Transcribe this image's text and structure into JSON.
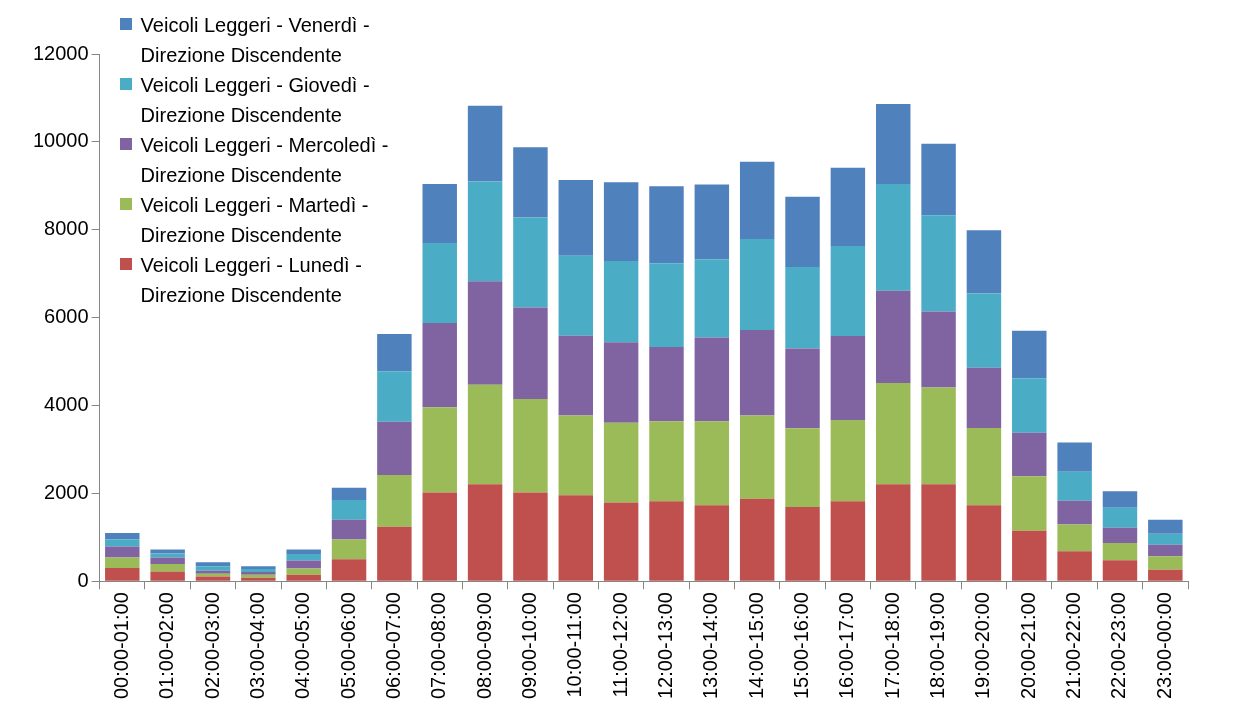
{
  "chart_data": {
    "type": "bar",
    "stacked": true,
    "legend": "top left",
    "categories": [
      "00:00-01:00",
      "01:00-02:00",
      "02:00-03:00",
      "03:00-04:00",
      "04:00-05:00",
      "05:00-06:00",
      "06:00-07:00",
      "07:00-08:00",
      "08:00-09:00",
      "09:00-10:00",
      "10:00-11:00",
      "11:00-12:00",
      "12:00-13:00",
      "13:00-14:00",
      "14:00-15:00",
      "15:00-16:00",
      "16:00-17:00",
      "17:00-18:00",
      "18:00-19:00",
      "19:00-20:00",
      "20:00-21:00",
      "21:00-22:00",
      "22:00-23:00",
      "23:00-00:00"
    ],
    "ylim": [
      0,
      12000
    ],
    "yticks": [
      0,
      2000,
      4000,
      6000,
      8000,
      10000,
      12000
    ],
    "series": [
      {
        "name": "Veicoli Leggeri - Lunedì - Direzione Discendente",
        "color": "#c0504d",
        "values": [
          300,
          220,
          110,
          80,
          150,
          500,
          1240,
          2020,
          2210,
          2020,
          1960,
          1790,
          1820,
          1730,
          1880,
          1690,
          1820,
          2210,
          2210,
          1730,
          1150,
          680,
          480,
          260
        ]
      },
      {
        "name": "Veicoli Leggeri - Martedì - Direzione Discendente",
        "color": "#9bbb59",
        "values": [
          240,
          170,
          60,
          70,
          140,
          450,
          1180,
          1940,
          2260,
          2130,
          1810,
          1820,
          1820,
          1910,
          1890,
          1790,
          1850,
          2300,
          2200,
          1760,
          1240,
          610,
          390,
          310
        ]
      },
      {
        "name": "Veicoli Leggeri - Mercoledì - Direzione Discendente",
        "color": "#8064a2",
        "values": [
          250,
          150,
          70,
          60,
          180,
          450,
          1210,
          1920,
          2360,
          2080,
          1820,
          1830,
          1690,
          1910,
          1950,
          1820,
          1910,
          2100,
          1730,
          1370,
          990,
          540,
          350,
          260
        ]
      },
      {
        "name": "Veicoli Leggeri - Giovedì - Direzione Discendente",
        "color": "#4bacc6",
        "values": [
          160,
          90,
          100,
          70,
          150,
          450,
          1150,
          1820,
          2270,
          2050,
          1820,
          1850,
          1910,
          1780,
          2070,
          1850,
          2050,
          2430,
          2190,
          1690,
          1240,
          660,
          450,
          250
        ]
      },
      {
        "name": "Veicoli Leggeri - Venerdì - Direzione Discendente",
        "color": "#4f81bd",
        "values": [
          150,
          90,
          90,
          60,
          100,
          280,
          850,
          1340,
          1720,
          1600,
          1720,
          1790,
          1750,
          1700,
          1760,
          1600,
          1780,
          1820,
          1630,
          1440,
          1080,
          670,
          380,
          320
        ]
      }
    ]
  }
}
